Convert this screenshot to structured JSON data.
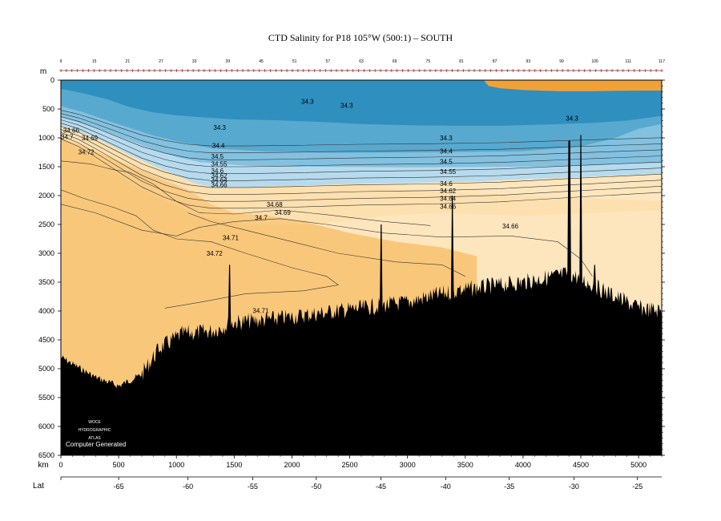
{
  "chart_data": {
    "type": "section_contour",
    "title": "CTD Salinity for P18 105°W (500:1) – SOUTH",
    "y_unit": "m",
    "x_unit": "km",
    "lat_label": "Lat",
    "ylim": [
      0,
      6500
    ],
    "xlim": [
      0,
      5200
    ],
    "y_ticks": [
      0,
      500,
      1000,
      1500,
      2000,
      2500,
      3000,
      3500,
      4000,
      4500,
      5000,
      5500,
      6000,
      6500
    ],
    "x_ticks": [
      0,
      500,
      1000,
      1500,
      2000,
      2500,
      3000,
      3500,
      4000,
      4500,
      5000
    ],
    "lat_ticks": [
      {
        "km": 0,
        "label": ""
      },
      {
        "km": 500,
        "label": "-65"
      },
      {
        "km": 1100,
        "label": "-60"
      },
      {
        "km": 1660,
        "label": "-55"
      },
      {
        "km": 2210,
        "label": "-50"
      },
      {
        "km": 2770,
        "label": "-45"
      },
      {
        "km": 3330,
        "label": "-40"
      },
      {
        "km": 3880,
        "label": "-35"
      },
      {
        "km": 4440,
        "label": "-30"
      },
      {
        "km": 4990,
        "label": "-25"
      }
    ],
    "station_labels": [
      "9",
      "15",
      "21",
      "27",
      "33",
      "39",
      "45",
      "51",
      "57",
      "63",
      "69",
      "75",
      "81",
      "87",
      "93",
      "99",
      "105",
      "111",
      "117"
    ],
    "contour_levels": [
      34.3,
      34.4,
      34.5,
      34.55,
      34.6,
      34.62,
      34.64,
      34.66,
      34.68,
      34.69,
      34.7,
      34.71,
      34.72
    ],
    "contour_labels": [
      {
        "text": "34.3",
        "km": 2080,
        "d": 370
      },
      {
        "text": "34.3",
        "km": 2420,
        "d": 440
      },
      {
        "text": "34.3",
        "km": 1320,
        "d": 820
      },
      {
        "text": "34.3",
        "km": 4370,
        "d": 660
      },
      {
        "text": "34.3",
        "km": 3280,
        "d": 1000
      },
      {
        "text": "34.4",
        "km": 1310,
        "d": 1130
      },
      {
        "text": "34.4",
        "km": 3280,
        "d": 1230
      },
      {
        "text": "34.5",
        "km": 1300,
        "d": 1320
      },
      {
        "text": "34.5",
        "km": 3280,
        "d": 1410
      },
      {
        "text": "34.55",
        "km": 1300,
        "d": 1450
      },
      {
        "text": "34.55",
        "km": 3280,
        "d": 1580
      },
      {
        "text": "34.6",
        "km": 1300,
        "d": 1570
      },
      {
        "text": "34.62",
        "km": 1300,
        "d": 1650
      },
      {
        "text": "34.64",
        "km": 1300,
        "d": 1730
      },
      {
        "text": "34.66",
        "km": 1300,
        "d": 1810
      },
      {
        "text": "34.6",
        "km": 3280,
        "d": 1790
      },
      {
        "text": "34.62",
        "km": 3280,
        "d": 1920
      },
      {
        "text": "34.64",
        "km": 3280,
        "d": 2050
      },
      {
        "text": "34.66",
        "km": 3280,
        "d": 2190
      },
      {
        "text": "34.66",
        "km": 20,
        "d": 870
      },
      {
        "text": "34.69",
        "km": 180,
        "d": 1000
      },
      {
        "text": "34.7",
        "km": 0,
        "d": 980
      },
      {
        "text": "34.72",
        "km": 150,
        "d": 1240
      },
      {
        "text": "34.68",
        "km": 1780,
        "d": 2150
      },
      {
        "text": "34.69",
        "km": 1850,
        "d": 2290
      },
      {
        "text": "34.7",
        "km": 1680,
        "d": 2380
      },
      {
        "text": "34.66",
        "km": 3820,
        "d": 2530
      },
      {
        "text": "34.71",
        "km": 1400,
        "d": 2730
      },
      {
        "text": "34.72",
        "km": 1260,
        "d": 3000
      },
      {
        "text": "34.71",
        "km": 1660,
        "d": 3990
      }
    ],
    "watermark": [
      "WOCE",
      "HYDROGRAPHIC",
      "ATLAS"
    ],
    "footer_note": "Computer Generated",
    "colors": {
      "fresh_dark": "#2f8fbf",
      "fresh_mid": "#58a9cf",
      "fresh_light": "#83c1e0",
      "fresh_pale": "#b7dbee",
      "salty_pale": "#fde6bd",
      "salty_mid": "#fbd596",
      "salty_core": "#f9c77a",
      "surface_salty": "#f0a238",
      "bottom": "#000000",
      "contour": "#333333"
    },
    "grid": false
  }
}
